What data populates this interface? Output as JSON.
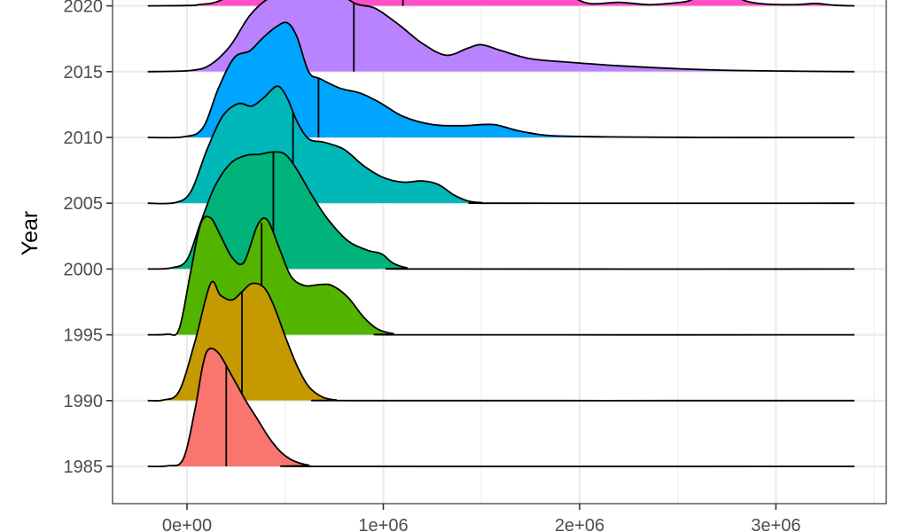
{
  "chart_data": {
    "type": "area",
    "subtype": "ridgeline",
    "ylabel": "Year",
    "xlabel": "",
    "xlim": [
      -200000,
      3500000
    ],
    "x_ticks": [
      {
        "value": 0,
        "label": "0e+00"
      },
      {
        "value": 1000000,
        "label": "1e+06"
      },
      {
        "value": 2000000,
        "label": "2e+06"
      },
      {
        "value": 3000000,
        "label": "3e+06"
      }
    ],
    "x_grid_minor": [
      500000,
      1500000,
      2500000,
      3500000
    ],
    "grid": true,
    "theme": "bw",
    "legend": "none",
    "series": [
      {
        "name": "1985",
        "color": "#F8766D",
        "median": 200000,
        "extent": [
          -200000,
          3400000
        ],
        "points": [
          [
            -200000,
            0
          ],
          [
            -100000,
            0.005
          ],
          [
            -20000,
            0.06
          ],
          [
            40000,
            0.48
          ],
          [
            80000,
            0.86
          ],
          [
            110000,
            1.0
          ],
          [
            160000,
            0.97
          ],
          [
            220000,
            0.8
          ],
          [
            300000,
            0.56
          ],
          [
            360000,
            0.4
          ],
          [
            420000,
            0.24
          ],
          [
            480000,
            0.12
          ],
          [
            540000,
            0.05
          ],
          [
            620000,
            0.01
          ],
          [
            700000,
            0
          ],
          [
            3400000,
            0
          ]
        ]
      },
      {
        "name": "1990",
        "color": "#C49A00",
        "median": 280000,
        "extent": [
          -200000,
          3400000
        ],
        "points": [
          [
            -200000,
            0
          ],
          [
            -120000,
            0.005
          ],
          [
            -40000,
            0.08
          ],
          [
            40000,
            0.5
          ],
          [
            120000,
            1.0
          ],
          [
            170000,
            0.9
          ],
          [
            230000,
            0.86
          ],
          [
            280000,
            0.93
          ],
          [
            330000,
            1.0
          ],
          [
            390000,
            0.97
          ],
          [
            440000,
            0.82
          ],
          [
            500000,
            0.55
          ],
          [
            560000,
            0.3
          ],
          [
            620000,
            0.12
          ],
          [
            690000,
            0.03
          ],
          [
            760000,
            0.005
          ],
          [
            850000,
            0
          ],
          [
            3400000,
            0
          ]
        ]
      },
      {
        "name": "1995",
        "color": "#53B400",
        "median": 380000,
        "extent": [
          -200000,
          3400000
        ],
        "points": [
          [
            -200000,
            0
          ],
          [
            -100000,
            0.005
          ],
          [
            -40000,
            0.05
          ],
          [
            20000,
            0.55
          ],
          [
            70000,
            0.95
          ],
          [
            120000,
            1.0
          ],
          [
            170000,
            0.85
          ],
          [
            230000,
            0.66
          ],
          [
            290000,
            0.62
          ],
          [
            360000,
            0.94
          ],
          [
            410000,
            0.98
          ],
          [
            470000,
            0.74
          ],
          [
            530000,
            0.5
          ],
          [
            600000,
            0.42
          ],
          [
            680000,
            0.43
          ],
          [
            740000,
            0.42
          ],
          [
            820000,
            0.32
          ],
          [
            900000,
            0.15
          ],
          [
            970000,
            0.05
          ],
          [
            1050000,
            0.01
          ],
          [
            1150000,
            0
          ],
          [
            3400000,
            0
          ]
        ]
      },
      {
        "name": "2000",
        "color": "#00B37A",
        "median": 440000,
        "extent": [
          -200000,
          3400000
        ],
        "points": [
          [
            -200000,
            0
          ],
          [
            -80000,
            0.01
          ],
          [
            0,
            0.08
          ],
          [
            70000,
            0.4
          ],
          [
            140000,
            0.7
          ],
          [
            220000,
            0.9
          ],
          [
            300000,
            0.97
          ],
          [
            370000,
            0.98
          ],
          [
            440000,
            1.0
          ],
          [
            500000,
            0.98
          ],
          [
            560000,
            0.85
          ],
          [
            640000,
            0.62
          ],
          [
            720000,
            0.42
          ],
          [
            820000,
            0.24
          ],
          [
            920000,
            0.16
          ],
          [
            990000,
            0.13
          ],
          [
            1050000,
            0.05
          ],
          [
            1120000,
            0.01
          ],
          [
            1200000,
            0
          ],
          [
            3400000,
            0
          ]
        ]
      },
      {
        "name": "2005",
        "color": "#00B8B8",
        "median": 540000,
        "extent": [
          -200000,
          3400000
        ],
        "points": [
          [
            -200000,
            0
          ],
          [
            -60000,
            0.005
          ],
          [
            20000,
            0.1
          ],
          [
            100000,
            0.45
          ],
          [
            180000,
            0.74
          ],
          [
            260000,
            0.85
          ],
          [
            330000,
            0.83
          ],
          [
            390000,
            0.9
          ],
          [
            460000,
            1.0
          ],
          [
            510000,
            0.9
          ],
          [
            560000,
            0.7
          ],
          [
            620000,
            0.55
          ],
          [
            700000,
            0.52
          ],
          [
            800000,
            0.46
          ],
          [
            900000,
            0.32
          ],
          [
            1000000,
            0.22
          ],
          [
            1100000,
            0.18
          ],
          [
            1200000,
            0.19
          ],
          [
            1280000,
            0.16
          ],
          [
            1360000,
            0.07
          ],
          [
            1430000,
            0.02
          ],
          [
            1500000,
            0.005
          ],
          [
            1600000,
            0
          ],
          [
            3400000,
            0
          ]
        ]
      },
      {
        "name": "2010",
        "color": "#00A5FF",
        "median": 670000,
        "extent": [
          -200000,
          3400000
        ],
        "points": [
          [
            -200000,
            0
          ],
          [
            -20000,
            0.005
          ],
          [
            80000,
            0.08
          ],
          [
            160000,
            0.42
          ],
          [
            240000,
            0.68
          ],
          [
            320000,
            0.74
          ],
          [
            380000,
            0.84
          ],
          [
            450000,
            0.94
          ],
          [
            510000,
            0.98
          ],
          [
            560000,
            0.86
          ],
          [
            620000,
            0.56
          ],
          [
            680000,
            0.5
          ],
          [
            780000,
            0.42
          ],
          [
            880000,
            0.38
          ],
          [
            980000,
            0.3
          ],
          [
            1100000,
            0.18
          ],
          [
            1250000,
            0.11
          ],
          [
            1400000,
            0.1
          ],
          [
            1560000,
            0.11
          ],
          [
            1680000,
            0.06
          ],
          [
            1820000,
            0.02
          ],
          [
            1950000,
            0.01
          ],
          [
            2150000,
            0.005
          ],
          [
            2600000,
            0
          ],
          [
            3400000,
            0
          ]
        ]
      },
      {
        "name": "2015",
        "color": "#B983FF",
        "median": 850000,
        "extent": [
          -200000,
          3400000
        ],
        "points": [
          [
            -200000,
            0
          ],
          [
            20000,
            0.01
          ],
          [
            120000,
            0.06
          ],
          [
            220000,
            0.22
          ],
          [
            320000,
            0.48
          ],
          [
            420000,
            0.63
          ],
          [
            530000,
            0.68
          ],
          [
            650000,
            0.72
          ],
          [
            760000,
            0.68
          ],
          [
            860000,
            0.58
          ],
          [
            960000,
            0.54
          ],
          [
            1080000,
            0.4
          ],
          [
            1200000,
            0.24
          ],
          [
            1320000,
            0.14
          ],
          [
            1430000,
            0.2
          ],
          [
            1500000,
            0.23
          ],
          [
            1600000,
            0.18
          ],
          [
            1750000,
            0.11
          ],
          [
            1950000,
            0.08
          ],
          [
            2200000,
            0.05
          ],
          [
            2500000,
            0.025
          ],
          [
            2800000,
            0.01
          ],
          [
            3100000,
            0.004
          ],
          [
            3400000,
            0
          ]
        ]
      },
      {
        "name": "2020",
        "color": "#FF4FC8",
        "median": 1100000,
        "extent": [
          -200000,
          3400000
        ],
        "points": [
          [
            -200000,
            0
          ],
          [
            -120000,
            0.001
          ],
          [
            0,
            0.003
          ],
          [
            60000,
            0.01
          ],
          [
            200000,
            0.07
          ],
          [
            500000,
            0.4
          ],
          [
            800000,
            0.8
          ],
          [
            1100000,
            1.0
          ],
          [
            1400000,
            0.92
          ],
          [
            1700000,
            0.55
          ],
          [
            1850000,
            0.28
          ],
          [
            1950000,
            0.1
          ],
          [
            2050000,
            0.02
          ],
          [
            2200000,
            0.03
          ],
          [
            2350000,
            0.01
          ],
          [
            2450000,
            0.02
          ],
          [
            2550000,
            0.04
          ],
          [
            2620000,
            0.09
          ],
          [
            2700000,
            0.12
          ],
          [
            2780000,
            0.09
          ],
          [
            2850000,
            0.04
          ],
          [
            2950000,
            0.015
          ],
          [
            3100000,
            0.01
          ],
          [
            3200000,
            0.02
          ],
          [
            3300000,
            0.005
          ],
          [
            3400000,
            0
          ]
        ]
      }
    ]
  }
}
